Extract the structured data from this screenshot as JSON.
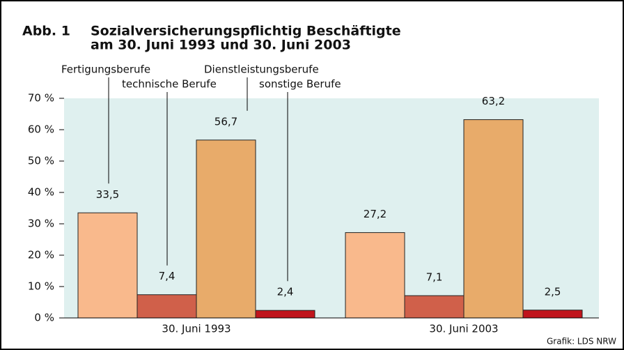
{
  "chart_data": {
    "type": "bar",
    "figure_label": "Abb. 1",
    "title_lines": [
      "Sozialversicherungspflichtig Beschäftigte",
      "am 30. Juni 1993 und 30. Juni 2003"
    ],
    "source": "Grafik: LDS NRW",
    "categories": [
      "30. Juni 1993",
      "30. Juni 2003"
    ],
    "series": [
      {
        "name": "Fertigungsberufe",
        "color": "#f9b98c",
        "values": [
          33.5,
          27.2
        ],
        "value_labels": [
          "33,5",
          "27,2"
        ]
      },
      {
        "name": "technische Berufe",
        "color": "#d0604a",
        "values": [
          7.4,
          7.1
        ],
        "value_labels": [
          "7,4",
          "7,1"
        ]
      },
      {
        "name": "Dienstleistungsberufe",
        "color": "#e8ab6a",
        "values": [
          56.7,
          63.2
        ],
        "value_labels": [
          "56,7",
          "63,2"
        ]
      },
      {
        "name": "sonstige Berufe",
        "color": "#c0141c",
        "values": [
          2.4,
          2.5
        ],
        "value_labels": [
          "2,4",
          "2,5"
        ]
      }
    ],
    "ylim": [
      0,
      70
    ],
    "yticks": [
      {
        "value": 0,
        "label": "0 %"
      },
      {
        "value": 10,
        "label": "10 %"
      },
      {
        "value": 20,
        "label": "20 %"
      },
      {
        "value": 30,
        "label": "30 %"
      },
      {
        "value": 40,
        "label": "40 %"
      },
      {
        "value": 50,
        "label": "50 %"
      },
      {
        "value": 60,
        "label": "60 %"
      },
      {
        "value": 70,
        "label": "70 %"
      }
    ],
    "plot_background": "#dff0ef"
  }
}
